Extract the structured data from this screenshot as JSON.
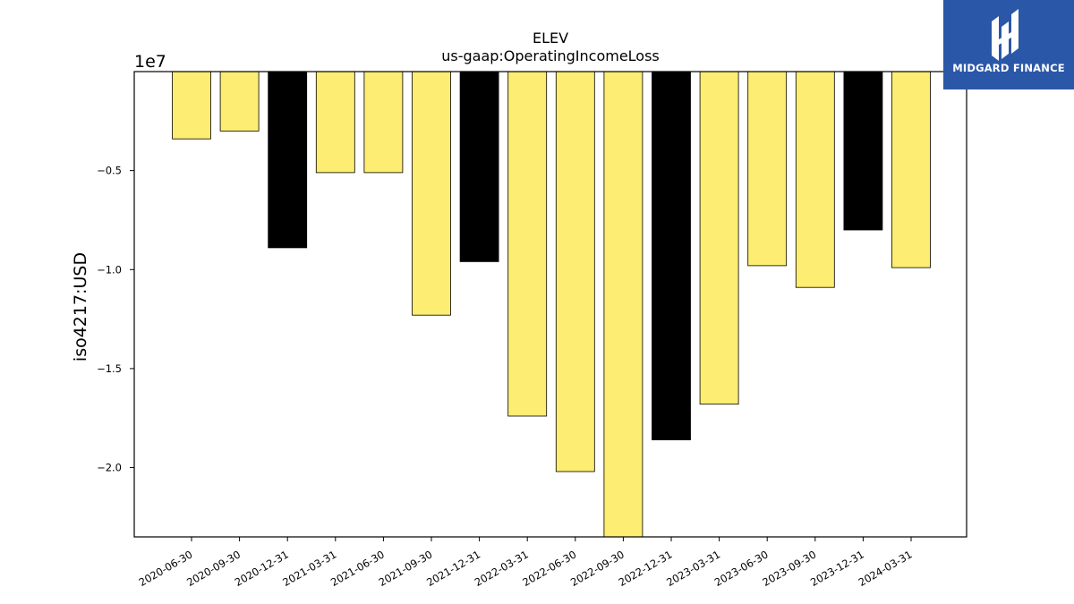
{
  "chart_data": {
    "type": "bar",
    "title": "ELEV",
    "subtitle": "us-gaap:OperatingIncomeLoss",
    "ylabel": "iso4217:USD",
    "xlabel": "",
    "y_offset_label": "1e7",
    "ylim": [
      -23500000.0,
      0
    ],
    "yticks": [
      -5000000,
      -10000000,
      -15000000,
      -20000000
    ],
    "ytick_labels": [
      "−0.5",
      "−1.0",
      "−1.5",
      "−2.0"
    ],
    "grid": false,
    "categories": [
      "2020-06-30",
      "2020-09-30",
      "2020-12-31",
      "2021-03-31",
      "2021-06-30",
      "2021-09-30",
      "2021-12-31",
      "2022-03-31",
      "2022-06-30",
      "2022-09-30",
      "2022-12-31",
      "2023-03-31",
      "2023-06-30",
      "2023-09-30",
      "2023-12-31",
      "2024-03-31"
    ],
    "values": [
      -3400000,
      -3000000,
      -8900000,
      -5100000,
      -5100000,
      -12300000,
      -9600000,
      -17400000,
      -20200000,
      -23500000,
      -18600000,
      -16800000,
      -9800000,
      -10900000,
      -8000000,
      -9900000
    ],
    "bar_colors": [
      "#fded72",
      "#fded72",
      "#000000",
      "#fded72",
      "#fded72",
      "#fded72",
      "#000000",
      "#fded72",
      "#fded72",
      "#fded72",
      "#000000",
      "#fded72",
      "#fded72",
      "#fded72",
      "#000000",
      "#fded72"
    ]
  },
  "logo": {
    "text": "MIDGARD FINANCE",
    "icon": "midgard-logo-icon",
    "color": "#2b57a8"
  }
}
